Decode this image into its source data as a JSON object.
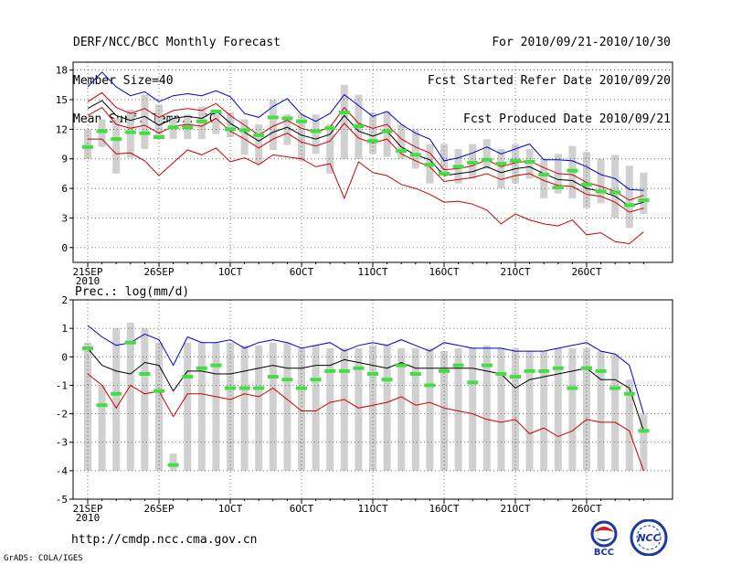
{
  "header": {
    "left": [
      "DERF/NCC/BCC Monthly Forecast",
      "Member Size=40",
      "Mean Surf. Temp.: °C"
    ],
    "right": [
      "For 2010/09/21-2010/10/30",
      "Fcst Started Refer Date 2010/09/20",
      "Fcst Produced Date 2010/09/21"
    ]
  },
  "footer": {
    "url": "http://cmdp.ncc.cma.gov.cn",
    "credit": "GrADS: COLA/IGES"
  },
  "logos": {
    "bcc_label": "BCC",
    "ncc_label": "NCC"
  },
  "colors": {
    "max_line": "#0000cc",
    "min_line": "#cc0000",
    "mean_line": "#000000",
    "spread": "#d0d0d0",
    "observed": "#44dd44"
  },
  "chart_data": [
    {
      "type": "line",
      "title": "Mean Surf. Temp.: °C",
      "xlabel": "",
      "ylabel": "",
      "x": [
        1,
        2,
        3,
        4,
        5,
        6,
        7,
        8,
        9,
        10,
        11,
        12,
        13,
        14,
        15,
        16,
        17,
        18,
        19,
        20,
        21,
        22,
        23,
        24,
        25,
        26,
        27,
        28,
        29,
        30,
        31,
        32,
        33,
        34,
        35,
        36,
        37,
        38,
        39,
        40
      ],
      "xticks": [
        {
          "day": 1,
          "label": "21SEP",
          "sub": "2010"
        },
        {
          "day": 6,
          "label": "26SEP"
        },
        {
          "day": 11,
          "label": "1OCT"
        },
        {
          "day": 16,
          "label": "6OCT"
        },
        {
          "day": 21,
          "label": "11OCT"
        },
        {
          "day": 26,
          "label": "16OCT"
        },
        {
          "day": 31,
          "label": "21OCT"
        },
        {
          "day": 36,
          "label": "26OCT"
        }
      ],
      "yticks": [
        0,
        3,
        6,
        9,
        12,
        15,
        18
      ],
      "ylim": [
        -1.5,
        18.8
      ],
      "grid": true,
      "series": [
        {
          "name": "max",
          "values": [
            16.3,
            17.8,
            16.3,
            15.4,
            15.8,
            14.8,
            15.4,
            15.6,
            15.4,
            15.9,
            15.3,
            13.6,
            13.2,
            14.3,
            15.1,
            13.5,
            12.8,
            13.6,
            15.5,
            14.4,
            13.3,
            13.8,
            12.5,
            11.6,
            11,
            8.8,
            9.1,
            9.6,
            10.2,
            9.5,
            10,
            10.5,
            8.9,
            8.9,
            8.8,
            8.2,
            7.4,
            7,
            5.9,
            5.8
          ]
        },
        {
          "name": "upper",
          "values": [
            14.8,
            15.7,
            14.2,
            13.6,
            14.1,
            13.2,
            13.9,
            14.1,
            13.9,
            14.6,
            13.4,
            12.4,
            11.4,
            12.3,
            12.9,
            12.1,
            11.7,
            12.2,
            14.2,
            12.6,
            12.1,
            12.5,
            11,
            10.2,
            9.6,
            7.9,
            8,
            8.3,
            8.9,
            8.2,
            8.6,
            8.8,
            8.1,
            7.5,
            7.4,
            6.6,
            6.2,
            5.7,
            4.8,
            5.3
          ]
        },
        {
          "name": "mean",
          "values": [
            14.1,
            14.9,
            13.4,
            12.9,
            13.3,
            12.4,
            13.1,
            13.3,
            13.1,
            13.9,
            12.6,
            11.7,
            10.8,
            11.7,
            12.2,
            11.4,
            11,
            11.5,
            13.4,
            11.8,
            11.3,
            11.8,
            10.2,
            9.4,
            8.9,
            7.3,
            7.5,
            7.7,
            8.2,
            7.6,
            8,
            8.2,
            7.5,
            6.9,
            6.8,
            6,
            5.7,
            5.2,
            4.2,
            4.6
          ]
        },
        {
          "name": "lower",
          "values": [
            13.4,
            14.2,
            12.5,
            12.1,
            12.4,
            11.6,
            12.3,
            12.5,
            12.3,
            13.1,
            11.8,
            11,
            10.1,
            11,
            11.6,
            10.7,
            10.3,
            10.8,
            12.6,
            11.1,
            10.6,
            11,
            9.5,
            8.8,
            8.2,
            6.7,
            6.9,
            7.1,
            7.5,
            6.9,
            7.3,
            7.5,
            6.8,
            6.3,
            6.2,
            5.4,
            5.2,
            4.6,
            3.6,
            4
          ]
        },
        {
          "name": "min",
          "values": [
            11,
            11,
            9.5,
            9.6,
            8.8,
            7.3,
            8.6,
            9.9,
            9.4,
            10.1,
            8.7,
            9.1,
            8.4,
            9.4,
            9.2,
            9,
            8.2,
            8.5,
            5,
            8.7,
            7.6,
            7.3,
            6.4,
            6,
            5.4,
            4.6,
            4.7,
            4.4,
            3.8,
            2.4,
            3.4,
            2.8,
            2.4,
            2.2,
            2.8,
            1.3,
            1.5,
            0.6,
            0.4,
            1.6
          ]
        }
      ],
      "spread": {
        "low": [
          9,
          10.2,
          7.5,
          9.1,
          10,
          11,
          11,
          11,
          11,
          11.5,
          11.2,
          9.4,
          8.5,
          9.9,
          10.4,
          8.8,
          9.5,
          7.5,
          9,
          9,
          9.5,
          9.2,
          9,
          8,
          6.5,
          7.5,
          6.5,
          7,
          8,
          6,
          6.5,
          7,
          5,
          5.5,
          5,
          4,
          4.5,
          3,
          2,
          3.4
        ],
        "high": [
          12,
          13,
          13.1,
          14,
          15.5,
          14.5,
          13.2,
          13.5,
          14.3,
          13.5,
          13.7,
          13,
          12.5,
          15,
          13.5,
          13.5,
          13.5,
          12.5,
          16.5,
          15.5,
          13.7,
          13.8,
          12.5,
          12,
          10.5,
          10.5,
          10,
          10.5,
          11,
          10,
          10.5,
          10,
          9,
          9.5,
          10.3,
          9.7,
          9,
          9.4,
          8.3,
          7.6
        ]
      },
      "observed": [
        10.2,
        11.8,
        11,
        11.7,
        11.6,
        11.2,
        12.2,
        12.2,
        12.8,
        13.8,
        12,
        11.9,
        11.4,
        13.2,
        13.1,
        12.8,
        11.8,
        12.1,
        13.7,
        12.3,
        10.8,
        11.8,
        9.8,
        9.4,
        8.4,
        7.5,
        8.2,
        8.6,
        8.9,
        8.5,
        8.8,
        8.7,
        7.4,
        6.1,
        7.8,
        6.4,
        5.7,
        5.6,
        4.3,
        4.8
      ]
    },
    {
      "type": "line",
      "title": "Prec.: log(mm/d)",
      "xlabel": "",
      "ylabel": "",
      "x": [
        1,
        2,
        3,
        4,
        5,
        6,
        7,
        8,
        9,
        10,
        11,
        12,
        13,
        14,
        15,
        16,
        17,
        18,
        19,
        20,
        21,
        22,
        23,
        24,
        25,
        26,
        27,
        28,
        29,
        30,
        31,
        32,
        33,
        34,
        35,
        36,
        37,
        38,
        39,
        40
      ],
      "xticks": [
        {
          "day": 1,
          "label": "21SEP",
          "sub": "2010"
        },
        {
          "day": 6,
          "label": "26SEP"
        },
        {
          "day": 11,
          "label": "1OCT"
        },
        {
          "day": 16,
          "label": "6OCT"
        },
        {
          "day": 21,
          "label": "11OCT"
        },
        {
          "day": 26,
          "label": "16OCT"
        },
        {
          "day": 31,
          "label": "21OCT"
        },
        {
          "day": 36,
          "label": "26OCT"
        }
      ],
      "yticks": [
        -5,
        -4,
        -3,
        -2,
        -1,
        0,
        1,
        2
      ],
      "ylim": [
        -5,
        2
      ],
      "grid": true,
      "series": [
        {
          "name": "max",
          "values": [
            1.1,
            0.7,
            0.4,
            0.5,
            0.8,
            0.6,
            -0.3,
            0.7,
            0.5,
            0.5,
            0.6,
            0.3,
            0.5,
            0.6,
            0.5,
            0.3,
            0.4,
            0.5,
            0.2,
            0.4,
            0.5,
            0.4,
            0.6,
            0.4,
            0.2,
            0.5,
            0.4,
            0.3,
            0.3,
            0.3,
            0.2,
            0.2,
            0.2,
            0.3,
            0.4,
            0.5,
            0.2,
            0.1,
            -0.3,
            -2
          ]
        },
        {
          "name": "mean",
          "values": [
            0.3,
            -0.3,
            -0.5,
            -0.6,
            -0.2,
            -0.3,
            -1.2,
            -0.5,
            -0.5,
            -0.6,
            -0.6,
            -0.5,
            -0.4,
            -0.3,
            -0.4,
            -0.4,
            -0.3,
            -0.3,
            -0.1,
            -0.2,
            -0.3,
            -0.4,
            -0.2,
            -0.4,
            -0.4,
            -0.4,
            -0.4,
            -0.4,
            -0.5,
            -0.6,
            -1.1,
            -0.8,
            -0.7,
            -0.6,
            -0.5,
            -0.4,
            -0.8,
            -0.8,
            -1.1,
            -2.6
          ]
        },
        {
          "name": "min",
          "values": [
            -0.6,
            -1,
            -1.8,
            -1,
            -1.3,
            -1.2,
            -2.1,
            -1.3,
            -1.3,
            -1.4,
            -1.5,
            -1.3,
            -1.4,
            -1.1,
            -1.5,
            -1.9,
            -1.9,
            -1.6,
            -1.5,
            -1.8,
            -1.7,
            -1.6,
            -1.4,
            -1.7,
            -1.6,
            -1.8,
            -1.9,
            -2,
            -2.2,
            -2.3,
            -2.2,
            -2.7,
            -2.5,
            -2.8,
            -2.6,
            -2.2,
            -2.3,
            -2.3,
            -2.6,
            -4
          ]
        }
      ],
      "spread": {
        "low": [
          -4,
          -4,
          -4,
          -4,
          -4,
          -4,
          -4,
          -4,
          -4,
          -4,
          -4,
          -4,
          -4,
          -4,
          -4,
          -4,
          -4,
          -4,
          -4,
          -4,
          -4,
          -4,
          -4,
          -4,
          -4,
          -4,
          -4,
          -4,
          -4,
          -4,
          -4,
          -4,
          -4,
          -4,
          -4,
          -4,
          -4,
          -4,
          -4,
          -4
        ],
        "high": [
          0.5,
          -1,
          1,
          1.2,
          1,
          0.5,
          -3.4,
          0.5,
          0.5,
          0.5,
          0.5,
          0.4,
          0.4,
          0.5,
          0.5,
          0.3,
          0.4,
          0.3,
          0.3,
          0.3,
          0.4,
          0.4,
          0.3,
          0.3,
          0.3,
          0.2,
          0.3,
          0.3,
          0.4,
          0.3,
          0.3,
          0.2,
          0.2,
          0.3,
          0.3,
          0.3,
          0.2,
          0.1,
          -0.8,
          -2
        ]
      },
      "observed": [
        0.3,
        -1.7,
        -1.3,
        0.5,
        -0.6,
        -1.2,
        -3.8,
        -0.7,
        -0.4,
        -0.3,
        -1.1,
        -1.1,
        -1.1,
        -0.7,
        -0.8,
        -1.1,
        -0.8,
        -0.5,
        -0.5,
        -0.4,
        -0.6,
        -0.8,
        -0.3,
        -0.6,
        -1,
        -0.5,
        -0.3,
        -0.9,
        -0.3,
        -0.6,
        -0.7,
        -0.5,
        -0.5,
        -0.4,
        -1.1,
        -0.4,
        -0.5,
        -1.1,
        -1.3,
        -2.6
      ]
    }
  ]
}
